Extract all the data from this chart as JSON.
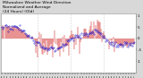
{
  "title": "Milwaukee Weather Wind Direction\nNormalized and Average\n(24 Hours) (Old)",
  "title_fontsize": 3.2,
  "background_color": "#d8d8d8",
  "plot_bg_color": "#ffffff",
  "ylim": [
    -1.5,
    1.1
  ],
  "yticks": [
    1.0,
    0.5,
    0.0,
    -0.5,
    -1.0
  ],
  "ytick_labels": [
    "1",
    ".5",
    "0",
    "-.5",
    "-1"
  ],
  "red_color": "#cc0000",
  "blue_color": "#0000cc",
  "grid_color": "#aaaaaa",
  "n_points": 144
}
